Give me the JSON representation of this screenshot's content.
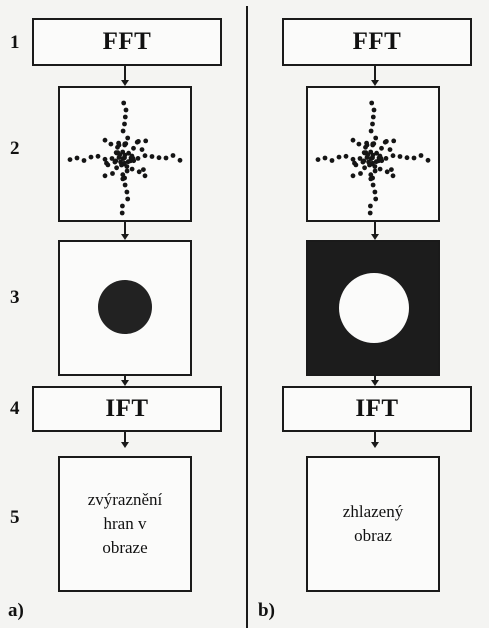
{
  "row_numbers": [
    "1",
    "2",
    "3",
    "4",
    "5"
  ],
  "panel_a": {
    "label": "a)",
    "fft": "FFT",
    "ift": "IFT",
    "result_lines": [
      "zvýraznění",
      "hran v",
      "obraze"
    ],
    "filter": "high-pass",
    "mask_center_color": "#222222",
    "mask_background_color": "#fbfbfa"
  },
  "panel_b": {
    "label": "b)",
    "fft": "FFT",
    "ift": "IFT",
    "result_lines": [
      "zhlazený",
      "obraz"
    ],
    "filter": "low-pass",
    "mask_center_color": "#fbfbfa",
    "mask_background_color": "#1c1c1c"
  }
}
